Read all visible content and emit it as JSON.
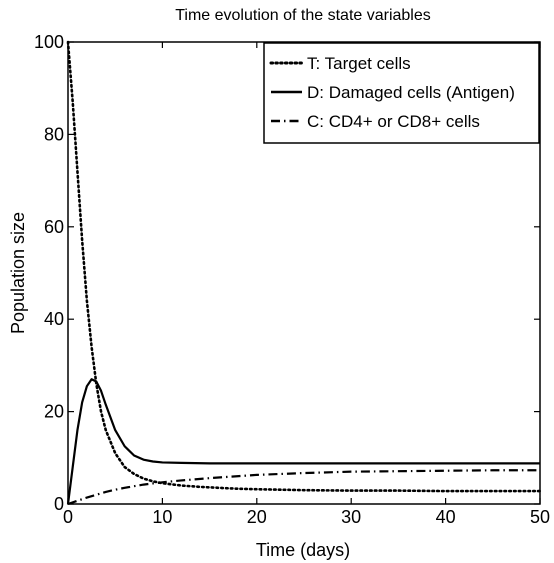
{
  "chart_data": {
    "type": "line",
    "title": "Time evolution of the state variables",
    "xlabel": "Time (days)",
    "ylabel": "Population size",
    "xlim": [
      0,
      50
    ],
    "ylim": [
      0,
      100
    ],
    "xticks": [
      0,
      10,
      20,
      30,
      40,
      50
    ],
    "yticks": [
      0,
      20,
      40,
      60,
      80,
      100
    ],
    "grid": false,
    "legend_position": "top-right",
    "series": [
      {
        "name": "T: Target cells",
        "line_style": "dotted",
        "color": "#000000",
        "x": [
          0,
          0.5,
          1,
          1.5,
          2,
          2.5,
          3,
          3.5,
          4,
          5,
          6,
          7,
          8,
          9,
          10,
          12,
          14,
          16,
          18,
          20,
          25,
          30,
          35,
          40,
          45,
          50
        ],
        "y": [
          100,
          87,
          72,
          57,
          44,
          34,
          26,
          20,
          16,
          11,
          8,
          6.5,
          5.5,
          4.9,
          4.5,
          4,
          3.7,
          3.5,
          3.3,
          3.2,
          3,
          2.9,
          2.9,
          2.8,
          2.8,
          2.8
        ]
      },
      {
        "name": "D: Damaged cells (Antigen)",
        "line_style": "solid",
        "color": "#000000",
        "x": [
          0,
          0.5,
          1,
          1.5,
          2,
          2.5,
          3,
          3.5,
          4,
          5,
          6,
          7,
          8,
          9,
          10,
          12,
          15,
          20,
          25,
          30,
          35,
          40,
          45,
          50
        ],
        "y": [
          0,
          8,
          16,
          22,
          25.5,
          27,
          26.5,
          24.5,
          21.5,
          16,
          12.5,
          10.5,
          9.6,
          9.2,
          9,
          8.9,
          8.8,
          8.8,
          8.8,
          8.8,
          8.8,
          8.8,
          8.8,
          8.8
        ]
      },
      {
        "name": "C: CD4+ or CD8+ cells",
        "line_style": "dashdot",
        "color": "#000000",
        "x": [
          0,
          1,
          2,
          3,
          4,
          5,
          6,
          8,
          10,
          12,
          15,
          20,
          25,
          30,
          35,
          40,
          45,
          50
        ],
        "y": [
          0,
          0.7,
          1.4,
          2,
          2.6,
          3.1,
          3.5,
          4.2,
          4.7,
          5.1,
          5.6,
          6.3,
          6.7,
          7,
          7.1,
          7.2,
          7.3,
          7.3
        ]
      }
    ]
  }
}
